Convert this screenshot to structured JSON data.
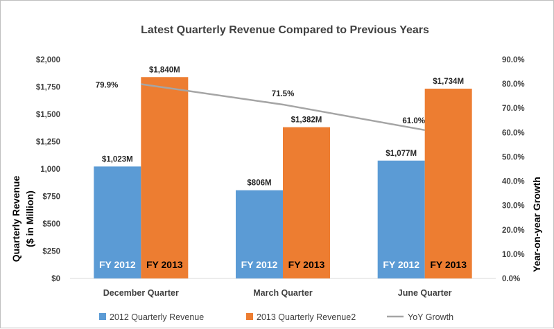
{
  "chart_data": {
    "type": "bar",
    "title": "Latest Quarterly Revenue Compared to Previous Years",
    "ylabel_lines": [
      "Quarterly Revenue",
      "($ in Million)"
    ],
    "y2label": "Year-on-year Growth",
    "categories": [
      "December Quarter",
      "March Quarter",
      "June Quarter"
    ],
    "ylim": [
      0,
      2000
    ],
    "y_ticks": [
      0,
      250,
      500,
      750,
      1000,
      1250,
      1500,
      1750,
      2000
    ],
    "y_tick_labels": [
      "$0",
      "$250",
      "$500",
      "$750",
      "1,000",
      "$1,250",
      "$1,500",
      "$1,750",
      "$2,000"
    ],
    "y2lim": [
      0,
      90
    ],
    "y2_ticks": [
      0,
      10,
      20,
      30,
      40,
      50,
      60,
      70,
      80,
      90
    ],
    "y2_tick_labels": [
      "0.0%",
      "10.0%",
      "20.0%",
      "30.0%",
      "40.0%",
      "50.0%",
      "60.0%",
      "70.0%",
      "80.0%",
      "90.0%"
    ],
    "grid": false,
    "legend_position": "bottom",
    "series": [
      {
        "name": "2012 Quarterly Revenue",
        "type": "bar",
        "axis": "left",
        "color": "#5b9bd5",
        "values": [
          1023,
          806,
          1077
        ],
        "data_labels": [
          "$1,023M",
          "$806M",
          "$1,077M"
        ],
        "bar_text": "FY 2012"
      },
      {
        "name": "2013 Quarterly Revenue2",
        "type": "bar",
        "axis": "left",
        "color": "#ed7d31",
        "values": [
          1840,
          1382,
          1734
        ],
        "data_labels": [
          "$1,840M",
          "$1,382M",
          "$1,734M"
        ],
        "bar_text": "FY 2013"
      },
      {
        "name": "YoY Growth",
        "type": "line",
        "axis": "right",
        "color": "#a5a5a5",
        "values": [
          79.9,
          71.5,
          61.0
        ],
        "data_labels": [
          "79.9%",
          "71.5%",
          "61.0%"
        ]
      }
    ]
  }
}
